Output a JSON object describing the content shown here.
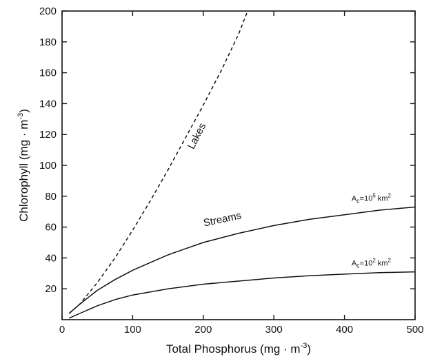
{
  "chart_data": {
    "type": "line",
    "title": "",
    "xlabel": "Total Phosphorus (mg · m",
    "xlabel_sup": "-3",
    "xlabel_end": ")",
    "ylabel": "Chlorophyll (mg · m",
    "ylabel_sup": "-3",
    "ylabel_end": ")",
    "xlim": [
      0,
      500
    ],
    "ylim": [
      0,
      200
    ],
    "xticks": [
      0,
      100,
      200,
      300,
      400,
      500
    ],
    "yticks": [
      20,
      40,
      60,
      80,
      100,
      120,
      140,
      160,
      180,
      200
    ],
    "grid": false,
    "series": [
      {
        "name": "Lakes",
        "style": "dashed",
        "x": [
          10,
          25,
          50,
          75,
          100,
          125,
          150,
          175,
          200,
          225,
          250,
          262
        ],
        "y": [
          4,
          10,
          24,
          40,
          58,
          77,
          97,
          118,
          139,
          161,
          185,
          199
        ]
      },
      {
        "name": "Streams",
        "style": "solid",
        "x": [
          10,
          25,
          50,
          75,
          100,
          150,
          200,
          250,
          300,
          350,
          400,
          450,
          500
        ],
        "y": [
          4,
          10,
          19,
          26,
          32,
          42,
          50,
          56,
          61,
          65,
          68,
          71,
          73
        ]
      },
      {
        "name": "",
        "style": "solid",
        "x": [
          10,
          25,
          50,
          75,
          100,
          150,
          200,
          250,
          300,
          350,
          400,
          450,
          500
        ],
        "y": [
          1,
          4,
          9,
          13,
          16,
          20,
          23,
          25,
          27,
          28.5,
          29.5,
          30.5,
          31
        ]
      }
    ],
    "annotations": [
      {
        "text": "Lakes",
        "x": 195,
        "y": 118,
        "angle": -63
      },
      {
        "text": "Streams",
        "x": 228,
        "y": 63,
        "angle": -12
      },
      {
        "text_pre": "A",
        "text_sub": "c",
        "text_mid": "=10",
        "text_sup": "5",
        "text_post": " km",
        "text_sup2": "2",
        "x": 410,
        "y": 77
      },
      {
        "text_pre": "A",
        "text_sub": "c",
        "text_mid": "=10",
        "text_sup": "2",
        "text_post": " km",
        "text_sup2": "2",
        "x": 410,
        "y": 35
      }
    ]
  }
}
